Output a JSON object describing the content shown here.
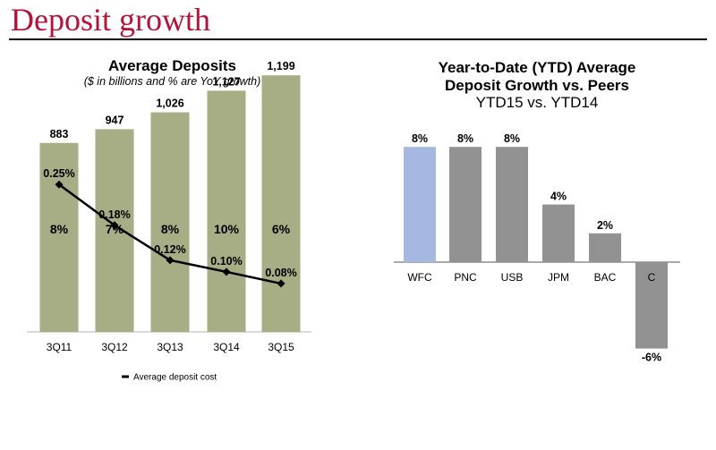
{
  "page": {
    "title": "Deposit growth"
  },
  "colors": {
    "title": "#b0153a",
    "bar_green": "#a7ad85",
    "bar_gray": "#929292",
    "bar_blue": "#a4b8e0",
    "line": "#000000"
  },
  "chart_data": [
    {
      "type": "bar",
      "title": "Average Deposits",
      "subtitle": "($ in billions and % are YoY growth)",
      "categories": [
        "3Q11",
        "3Q12",
        "3Q13",
        "3Q14",
        "3Q15"
      ],
      "values": [
        883,
        947,
        1026,
        1127,
        1199
      ],
      "value_labels": [
        "883",
        "947",
        "1,026",
        "1,127",
        "1,199"
      ],
      "growth_labels": [
        "8%",
        "7%",
        "8%",
        "10%",
        "6%"
      ],
      "ylim": [
        0,
        1300
      ],
      "overlay_line": {
        "name": "Average deposit cost",
        "values": [
          0.25,
          0.18,
          0.12,
          0.1,
          0.08
        ],
        "labels": [
          "0.25%",
          "0.18%",
          "0.12%",
          "0.10%",
          "0.08%"
        ],
        "ylim": [
          0,
          0.45
        ]
      },
      "legend": "Average deposit cost"
    },
    {
      "type": "bar",
      "title_lines": [
        "Year-to-Date (YTD) Average",
        "Deposit Growth vs. Peers"
      ],
      "subtitle": "YTD15 vs. YTD14",
      "categories": [
        "WFC",
        "PNC",
        "USB",
        "JPM",
        "BAC",
        "C"
      ],
      "values": [
        8,
        8,
        8,
        4,
        2,
        -6
      ],
      "value_labels": [
        "8%",
        "8%",
        "8%",
        "4%",
        "2%",
        "-6%"
      ],
      "highlight": "WFC",
      "ylim": [
        -6,
        8
      ]
    }
  ]
}
